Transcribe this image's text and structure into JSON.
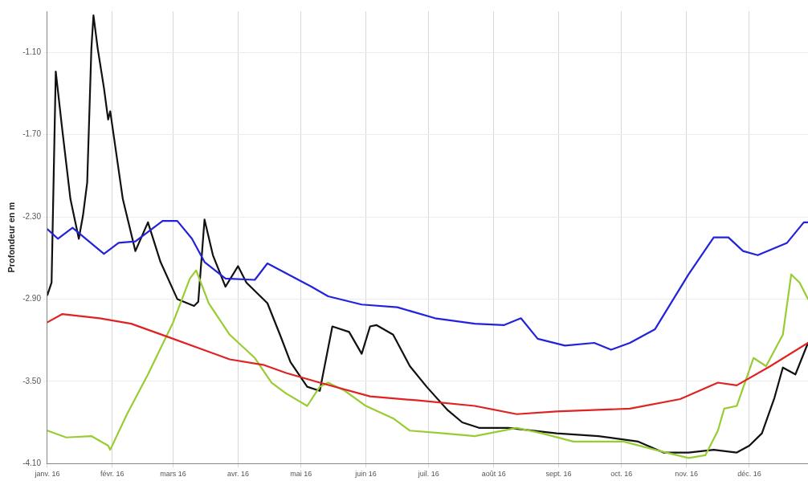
{
  "chart_data": {
    "type": "line",
    "ylabel": "Profondeur en m",
    "xlim": [
      "2016-01-01",
      "2016-12-29"
    ],
    "xticks": [
      {
        "value": "2016-01-01",
        "label": "janv. 16"
      },
      {
        "value": "2016-02-01",
        "label": "févr. 16"
      },
      {
        "value": "2016-03-01",
        "label": "mars 16"
      },
      {
        "value": "2016-04-01",
        "label": "avr. 16"
      },
      {
        "value": "2016-05-01",
        "label": "mai 16"
      },
      {
        "value": "2016-06-01",
        "label": "juin 16"
      },
      {
        "value": "2016-07-01",
        "label": "juil. 16"
      },
      {
        "value": "2016-08-01",
        "label": "août 16"
      },
      {
        "value": "2016-09-01",
        "label": "sept. 16"
      },
      {
        "value": "2016-10-01",
        "label": "oct. 16"
      },
      {
        "value": "2016-11-01",
        "label": "nov. 16"
      },
      {
        "value": "2016-12-01",
        "label": "déc. 16"
      }
    ],
    "ylim": [
      -4.1,
      -0.8
    ],
    "yticks": [
      {
        "value": -1.1,
        "label": "-1.10"
      },
      {
        "value": -1.7,
        "label": "-1.70"
      },
      {
        "value": -2.3,
        "label": "-2.30"
      },
      {
        "value": -2.9,
        "label": "-2.90"
      },
      {
        "value": -3.5,
        "label": "-3.50"
      },
      {
        "value": -4.1,
        "label": "-4.10"
      }
    ],
    "grid": true,
    "legend": false,
    "marker": "none",
    "line_style": "solid",
    "series": [
      {
        "color": "#2222dd",
        "x": [
          "2016-01-01",
          "2016-01-06",
          "2016-01-13",
          "2016-01-28",
          "2016-02-04",
          "2016-02-12",
          "2016-02-25",
          "2016-03-03",
          "2016-03-10",
          "2016-03-16",
          "2016-03-26",
          "2016-04-09",
          "2016-04-15",
          "2016-05-06",
          "2016-05-14",
          "2016-05-30",
          "2016-06-16",
          "2016-07-04",
          "2016-07-23",
          "2016-08-06",
          "2016-08-14",
          "2016-08-22",
          "2016-09-04",
          "2016-09-18",
          "2016-09-26",
          "2016-10-05",
          "2016-10-17",
          "2016-11-02",
          "2016-11-14",
          "2016-11-21",
          "2016-11-28",
          "2016-12-05",
          "2016-12-19",
          "2016-12-27",
          "2016-12-29"
        ],
        "values": [
          -2.39,
          -2.46,
          -2.38,
          -2.57,
          -2.49,
          -2.48,
          -2.33,
          -2.33,
          -2.46,
          -2.63,
          -2.75,
          -2.76,
          -2.64,
          -2.81,
          -2.88,
          -2.94,
          -2.96,
          -3.04,
          -3.08,
          -3.09,
          -3.04,
          -3.19,
          -3.24,
          -3.22,
          -3.27,
          -3.22,
          -3.12,
          -2.72,
          -2.45,
          -2.45,
          -2.55,
          -2.58,
          -2.49,
          -2.34,
          -2.34
        ]
      },
      {
        "color": "#e02222",
        "x": [
          "2016-01-01",
          "2016-01-08",
          "2016-01-26",
          "2016-02-10",
          "2016-03-01",
          "2016-03-28",
          "2016-04-13",
          "2016-04-24",
          "2016-05-10",
          "2016-06-03",
          "2016-06-26",
          "2016-07-23",
          "2016-08-12",
          "2016-08-31",
          "2016-10-05",
          "2016-10-29",
          "2016-11-16",
          "2016-11-25",
          "2016-12-11",
          "2016-12-29"
        ],
        "values": [
          -3.07,
          -3.01,
          -3.04,
          -3.08,
          -3.19,
          -3.34,
          -3.38,
          -3.44,
          -3.51,
          -3.61,
          -3.64,
          -3.68,
          -3.74,
          -3.72,
          -3.7,
          -3.63,
          -3.51,
          -3.53,
          -3.39,
          -3.22
        ]
      },
      {
        "color": "#99cc33",
        "x": [
          "2016-01-01",
          "2016-01-10",
          "2016-01-22",
          "2016-01-30",
          "2016-01-31",
          "2016-02-08",
          "2016-02-18",
          "2016-03-01",
          "2016-03-09",
          "2016-03-12",
          "2016-03-18",
          "2016-03-28",
          "2016-04-09",
          "2016-04-17",
          "2016-04-24",
          "2016-05-04",
          "2016-05-10",
          "2016-05-14",
          "2016-05-22",
          "2016-06-01",
          "2016-06-14",
          "2016-06-22",
          "2016-07-08",
          "2016-07-23",
          "2016-08-12",
          "2016-08-24",
          "2016-09-08",
          "2016-10-02",
          "2016-10-17",
          "2016-11-02",
          "2016-11-10",
          "2016-11-16",
          "2016-11-19",
          "2016-11-25",
          "2016-12-03",
          "2016-12-09",
          "2016-12-17",
          "2016-12-21",
          "2016-12-25",
          "2016-12-29"
        ],
        "values": [
          -3.86,
          -3.91,
          -3.9,
          -3.97,
          -4.0,
          -3.74,
          -3.45,
          -3.07,
          -2.75,
          -2.69,
          -2.93,
          -3.16,
          -3.33,
          -3.51,
          -3.59,
          -3.68,
          -3.54,
          -3.51,
          -3.57,
          -3.68,
          -3.77,
          -3.86,
          -3.88,
          -3.9,
          -3.84,
          -3.88,
          -3.94,
          -3.94,
          -4.0,
          -4.06,
          -4.04,
          -3.86,
          -3.7,
          -3.68,
          -3.33,
          -3.39,
          -3.16,
          -2.72,
          -2.78,
          -2.9
        ]
      },
      {
        "color": "#111111",
        "x": [
          "2016-01-01",
          "2016-01-03",
          "2016-01-05",
          "2016-01-08",
          "2016-01-12",
          "2016-01-16",
          "2016-01-18",
          "2016-01-20",
          "2016-01-22",
          "2016-01-23",
          "2016-01-25",
          "2016-01-28",
          "2016-01-30",
          "2016-01-31",
          "2016-02-06",
          "2016-02-12",
          "2016-02-18",
          "2016-02-24",
          "2016-03-03",
          "2016-03-11",
          "2016-03-13",
          "2016-03-16",
          "2016-03-20",
          "2016-03-26",
          "2016-04-01",
          "2016-04-05",
          "2016-04-15",
          "2016-04-21",
          "2016-04-26",
          "2016-05-04",
          "2016-05-10",
          "2016-05-16",
          "2016-05-24",
          "2016-05-30",
          "2016-06-03",
          "2016-06-06",
          "2016-06-14",
          "2016-06-22",
          "2016-06-30",
          "2016-07-10",
          "2016-07-17",
          "2016-07-25",
          "2016-08-08",
          "2016-08-31",
          "2016-09-20",
          "2016-10-09",
          "2016-10-21",
          "2016-11-02",
          "2016-11-14",
          "2016-11-25",
          "2016-12-01",
          "2016-12-07",
          "2016-12-13",
          "2016-12-17",
          "2016-12-23",
          "2016-12-29"
        ],
        "values": [
          -2.87,
          -2.78,
          -1.24,
          -1.65,
          -2.17,
          -2.46,
          -2.29,
          -2.05,
          -1.07,
          -0.83,
          -1.07,
          -1.36,
          -1.59,
          -1.53,
          -2.17,
          -2.55,
          -2.34,
          -2.63,
          -2.9,
          -2.95,
          -2.92,
          -2.32,
          -2.58,
          -2.81,
          -2.66,
          -2.78,
          -2.93,
          -3.16,
          -3.36,
          -3.54,
          -3.57,
          -3.1,
          -3.14,
          -3.3,
          -3.1,
          -3.09,
          -3.16,
          -3.39,
          -3.54,
          -3.71,
          -3.8,
          -3.84,
          -3.84,
          -3.88,
          -3.9,
          -3.94,
          -4.02,
          -4.02,
          -4.0,
          -4.02,
          -3.97,
          -3.88,
          -3.62,
          -3.4,
          -3.45,
          -3.22
        ]
      }
    ]
  }
}
